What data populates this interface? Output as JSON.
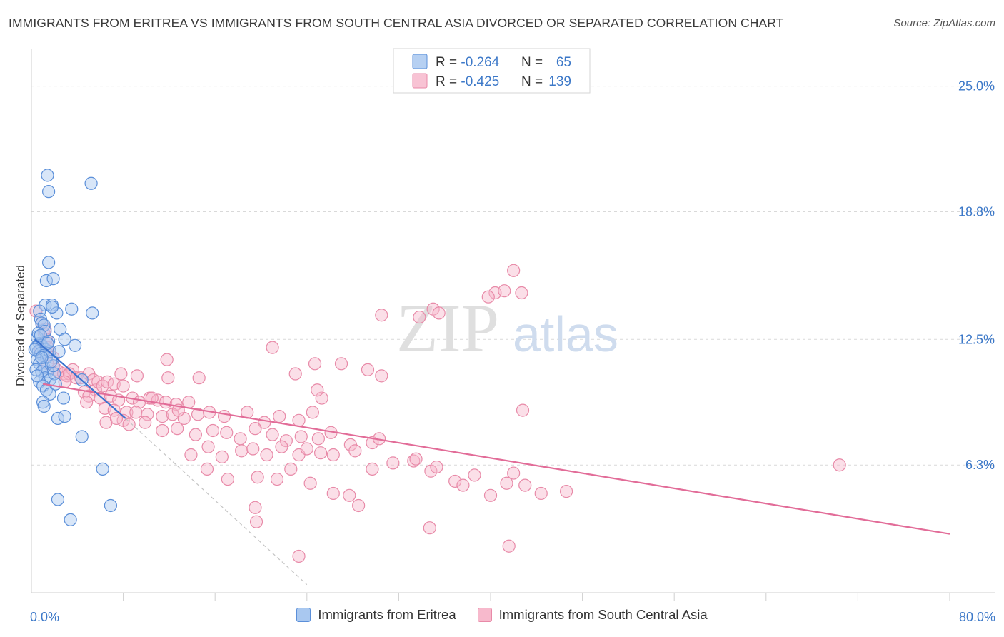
{
  "title": "IMMIGRANTS FROM ERITREA VS IMMIGRANTS FROM SOUTH CENTRAL ASIA DIVORCED OR SEPARATED CORRELATION CHART",
  "source": "Source: ZipAtlas.com",
  "watermark": {
    "zip": "ZIP",
    "atlas": "atlas"
  },
  "colors": {
    "blue_fill": "#a9c8f0",
    "blue_stroke": "#5b8fd9",
    "blue_line": "#3a72cf",
    "pink_fill": "#f7b9cc",
    "pink_stroke": "#e88aa8",
    "pink_line": "#e26c98",
    "axis_label": "#3c78c8",
    "grid": "#d9d9d9"
  },
  "legend_box": {
    "rows": [
      {
        "r_label": "R = ",
        "r_value": "-0.264",
        "n_label": "N = ",
        "n_value": "65"
      },
      {
        "r_label": "R = ",
        "r_value": "-0.425",
        "n_label": "N = ",
        "n_value": "139"
      }
    ]
  },
  "legend_bottom": [
    "Immigrants from Eritrea",
    "Immigrants from South Central Asia"
  ],
  "chart_data": {
    "type": "scatter",
    "title": "IMMIGRANTS FROM ERITREA VS IMMIGRANTS FROM SOUTH CENTRAL ASIA DIVORCED OR SEPARATED CORRELATION CHART",
    "xlabel": "",
    "ylabel": "Divorced or Separated",
    "xlim": [
      0,
      80
    ],
    "ylim": [
      0,
      26.5
    ],
    "x_tick_labels": [
      {
        "value": 0,
        "label": "0.0%"
      },
      {
        "value": 80,
        "label": "80.0%"
      }
    ],
    "y_ticks": [
      {
        "value": 6.3,
        "label": "6.3%"
      },
      {
        "value": 12.5,
        "label": "12.5%"
      },
      {
        "value": 18.8,
        "label": "18.8%"
      },
      {
        "value": 25.0,
        "label": "25.0%"
      }
    ],
    "x_minor_ticks": [
      8,
      16,
      24,
      32,
      40,
      48,
      56,
      64,
      72,
      80
    ],
    "grid": true,
    "legend_position": "top-center",
    "series": [
      {
        "name": "Immigrants from Eritrea",
        "r": -0.264,
        "n": 65,
        "trend": {
          "x0": 0.3,
          "y0": 12.5,
          "x1": 8.2,
          "y1": 8.6
        },
        "trend_extension": {
          "x0": 8.2,
          "y0": 8.6,
          "x1": 24.0,
          "y1": 0.4
        },
        "points": [
          [
            1.4,
            20.6
          ],
          [
            1.5,
            19.8
          ],
          [
            5.2,
            20.2
          ],
          [
            1.5,
            16.3
          ],
          [
            1.3,
            15.4
          ],
          [
            1.9,
            15.5
          ],
          [
            1.2,
            14.2
          ],
          [
            1.8,
            14.2
          ],
          [
            2.2,
            13.8
          ],
          [
            3.5,
            14.0
          ],
          [
            5.3,
            13.8
          ],
          [
            1.8,
            14.1
          ],
          [
            0.7,
            13.9
          ],
          [
            0.8,
            13.5
          ],
          [
            0.9,
            13.3
          ],
          [
            1.1,
            13.2
          ],
          [
            1.2,
            12.9
          ],
          [
            2.5,
            13.0
          ],
          [
            0.5,
            12.6
          ],
          [
            0.7,
            12.3
          ],
          [
            0.9,
            12.2
          ],
          [
            1.2,
            12.0
          ],
          [
            2.9,
            12.5
          ],
          [
            3.8,
            12.2
          ],
          [
            0.4,
            12.1
          ],
          [
            0.6,
            11.9
          ],
          [
            0.8,
            11.8
          ],
          [
            1.0,
            11.7
          ],
          [
            1.3,
            11.6
          ],
          [
            1.6,
            11.9
          ],
          [
            2.4,
            11.9
          ],
          [
            0.5,
            11.5
          ],
          [
            0.7,
            11.3
          ],
          [
            1.1,
            11.1
          ],
          [
            1.4,
            10.9
          ],
          [
            0.4,
            11.0
          ],
          [
            0.9,
            10.9
          ],
          [
            1.2,
            10.6
          ],
          [
            1.6,
            10.5
          ],
          [
            2.0,
            10.8
          ],
          [
            0.7,
            10.4
          ],
          [
            1.0,
            10.2
          ],
          [
            1.3,
            10.0
          ],
          [
            1.6,
            9.8
          ],
          [
            2.8,
            9.6
          ],
          [
            4.4,
            10.5
          ],
          [
            1.0,
            9.4
          ],
          [
            1.1,
            9.2
          ],
          [
            2.3,
            8.6
          ],
          [
            2.9,
            8.7
          ],
          [
            4.4,
            7.7
          ],
          [
            6.2,
            6.1
          ],
          [
            2.3,
            4.6
          ],
          [
            3.4,
            3.6
          ],
          [
            6.9,
            4.3
          ],
          [
            0.6,
            12.8
          ],
          [
            0.8,
            12.7
          ],
          [
            1.5,
            12.4
          ],
          [
            0.3,
            12.0
          ],
          [
            1.9,
            11.2
          ],
          [
            0.5,
            10.7
          ],
          [
            2.1,
            10.3
          ],
          [
            1.7,
            11.4
          ],
          [
            0.9,
            11.6
          ],
          [
            1.4,
            12.3
          ]
        ]
      },
      {
        "name": "Immigrants from South Central Asia",
        "r": -0.425,
        "n": 139,
        "trend": {
          "x0": 1.0,
          "y0": 10.3,
          "x1": 80.0,
          "y1": 2.9
        },
        "points": [
          [
            0.4,
            13.9
          ],
          [
            0.9,
            13.3
          ],
          [
            1.2,
            13.0
          ],
          [
            1.1,
            12.8
          ],
          [
            1.3,
            12.5
          ],
          [
            1.4,
            12.1
          ],
          [
            0.8,
            12.0
          ],
          [
            1.6,
            11.9
          ],
          [
            1.0,
            11.7
          ],
          [
            1.9,
            11.6
          ],
          [
            1.4,
            11.3
          ],
          [
            2.2,
            11.0
          ],
          [
            2.4,
            10.9
          ],
          [
            2.8,
            10.8
          ],
          [
            3.1,
            10.7
          ],
          [
            3.6,
            11.0
          ],
          [
            3.3,
            10.8
          ],
          [
            2.9,
            10.4
          ],
          [
            3.9,
            10.6
          ],
          [
            4.3,
            10.6
          ],
          [
            5.0,
            10.8
          ],
          [
            5.4,
            10.5
          ],
          [
            5.6,
            10.0
          ],
          [
            5.8,
            10.4
          ],
          [
            6.2,
            10.2
          ],
          [
            6.6,
            10.4
          ],
          [
            7.2,
            10.3
          ],
          [
            8.0,
            10.2
          ],
          [
            4.6,
            9.9
          ],
          [
            5.0,
            9.7
          ],
          [
            6.0,
            9.6
          ],
          [
            6.9,
            9.7
          ],
          [
            7.6,
            9.5
          ],
          [
            8.8,
            9.6
          ],
          [
            9.4,
            9.4
          ],
          [
            10.3,
            9.6
          ],
          [
            11.0,
            9.5
          ],
          [
            11.7,
            9.4
          ],
          [
            12.6,
            9.3
          ],
          [
            13.7,
            9.4
          ],
          [
            4.8,
            9.4
          ],
          [
            6.4,
            9.1
          ],
          [
            7.2,
            9.0
          ],
          [
            8.3,
            8.9
          ],
          [
            8.0,
            8.5
          ],
          [
            9.1,
            8.9
          ],
          [
            10.1,
            8.8
          ],
          [
            11.4,
            8.7
          ],
          [
            12.3,
            8.8
          ],
          [
            13.3,
            8.6
          ],
          [
            14.5,
            8.8
          ],
          [
            15.5,
            8.9
          ],
          [
            16.8,
            8.7
          ],
          [
            18.8,
            8.9
          ],
          [
            20.3,
            8.4
          ],
          [
            21.6,
            8.7
          ],
          [
            23.3,
            8.5
          ],
          [
            24.5,
            8.9
          ],
          [
            25.3,
            9.6
          ],
          [
            24.9,
            10.0
          ],
          [
            6.5,
            8.4
          ],
          [
            7.4,
            8.6
          ],
          [
            8.5,
            8.3
          ],
          [
            9.9,
            8.4
          ],
          [
            11.4,
            8.0
          ],
          [
            12.7,
            8.1
          ],
          [
            14.3,
            7.8
          ],
          [
            15.8,
            8.0
          ],
          [
            17.0,
            7.9
          ],
          [
            18.2,
            7.6
          ],
          [
            19.5,
            8.1
          ],
          [
            21.0,
            7.8
          ],
          [
            22.2,
            7.5
          ],
          [
            23.5,
            7.7
          ],
          [
            25.0,
            7.6
          ],
          [
            26.1,
            7.9
          ],
          [
            27.8,
            7.3
          ],
          [
            29.7,
            7.4
          ],
          [
            30.3,
            7.6
          ],
          [
            13.9,
            6.8
          ],
          [
            15.4,
            7.2
          ],
          [
            16.6,
            6.7
          ],
          [
            18.3,
            7.0
          ],
          [
            19.3,
            7.1
          ],
          [
            20.5,
            6.8
          ],
          [
            21.8,
            7.2
          ],
          [
            23.3,
            6.8
          ],
          [
            24.0,
            7.1
          ],
          [
            25.2,
            6.9
          ],
          [
            26.3,
            6.8
          ],
          [
            28.2,
            7.0
          ],
          [
            29.7,
            6.1
          ],
          [
            31.5,
            6.4
          ],
          [
            33.3,
            6.5
          ],
          [
            33.5,
            6.6
          ],
          [
            34.8,
            6.0
          ],
          [
            35.3,
            6.2
          ],
          [
            36.9,
            5.5
          ],
          [
            37.6,
            5.3
          ],
          [
            38.6,
            5.8
          ],
          [
            40.0,
            4.8
          ],
          [
            41.4,
            5.4
          ],
          [
            42.0,
            5.9
          ],
          [
            43.0,
            5.3
          ],
          [
            44.4,
            4.9
          ],
          [
            46.6,
            5.0
          ],
          [
            15.3,
            6.1
          ],
          [
            17.1,
            5.6
          ],
          [
            19.7,
            5.7
          ],
          [
            21.4,
            5.6
          ],
          [
            22.6,
            6.1
          ],
          [
            24.3,
            5.4
          ],
          [
            26.3,
            4.9
          ],
          [
            27.7,
            4.8
          ],
          [
            28.5,
            4.3
          ],
          [
            19.5,
            4.2
          ],
          [
            19.6,
            3.5
          ],
          [
            34.7,
            3.2
          ],
          [
            41.6,
            2.3
          ],
          [
            23.3,
            1.8
          ],
          [
            7.8,
            10.8
          ],
          [
            9.2,
            10.7
          ],
          [
            11.9,
            10.6
          ],
          [
            12.8,
            9.0
          ],
          [
            23.0,
            10.8
          ],
          [
            24.7,
            11.3
          ],
          [
            29.3,
            11.0
          ],
          [
            30.5,
            10.7
          ],
          [
            27.0,
            11.3
          ],
          [
            14.6,
            10.6
          ],
          [
            21.0,
            12.1
          ],
          [
            30.5,
            13.7
          ],
          [
            35.0,
            14.0
          ],
          [
            35.5,
            13.8
          ],
          [
            40.4,
            14.8
          ],
          [
            41.2,
            14.9
          ],
          [
            42.0,
            15.9
          ],
          [
            39.8,
            14.6
          ],
          [
            42.7,
            14.8
          ],
          [
            33.8,
            13.6
          ],
          [
            42.8,
            9.0
          ],
          [
            70.4,
            6.3
          ],
          [
            11.8,
            11.5
          ],
          [
            10.5,
            9.6
          ]
        ]
      }
    ]
  }
}
